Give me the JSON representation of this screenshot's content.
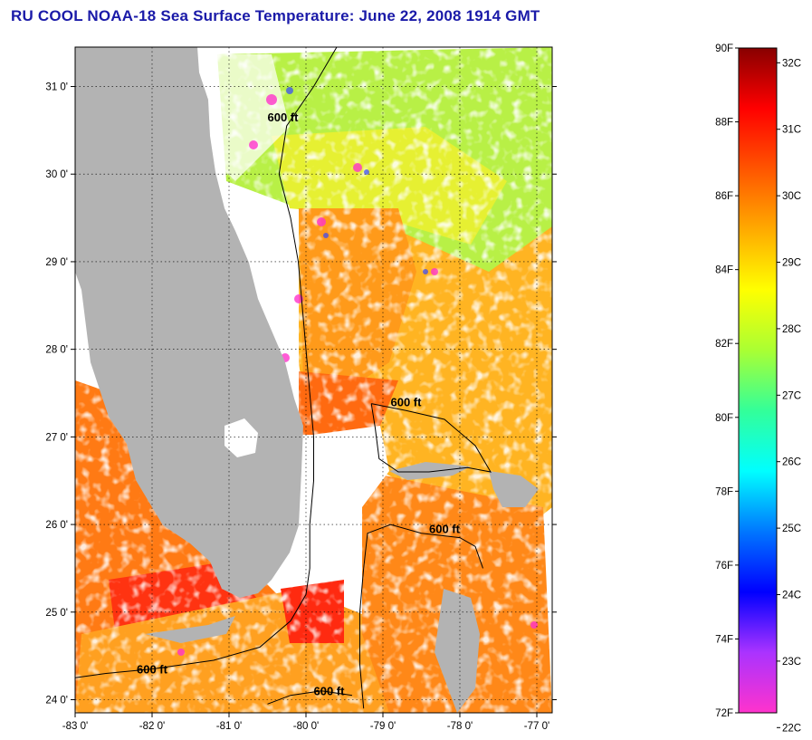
{
  "title": "RU COOL  NOAA-18  Sea Surface Temperature:  June 22, 2008 1914 GMT",
  "chart_data": {
    "type": "heatmap",
    "title": "RU COOL  NOAA-18  Sea Surface Temperature:  June 22, 2008 1914 GMT",
    "x_axis": {
      "range": [
        -83.0,
        -76.8
      ],
      "tick_values": [
        -83,
        -82,
        -81,
        -80,
        -79,
        -78,
        -77
      ],
      "tick_labels": [
        "-83 0'",
        "-82 0'",
        "-81 0'",
        "-80 0'",
        "-79 0'",
        "-78 0'",
        "-77 0'"
      ]
    },
    "y_axis": {
      "range": [
        23.85,
        31.45
      ],
      "tick_values": [
        24,
        25,
        26,
        27,
        28,
        29,
        30,
        31
      ],
      "tick_labels": [
        "24 0'",
        "25 0'",
        "26 0'",
        "27 0'",
        "28 0'",
        "29 0'",
        "30 0'",
        "31 0'"
      ]
    },
    "grid": true,
    "land_color": "#b3b3b3",
    "contour_labels": [
      {
        "text": "600 ft",
        "lon": -80.5,
        "lat": 30.6
      },
      {
        "text": "600 ft",
        "lon": -78.9,
        "lat": 27.35
      },
      {
        "text": "600 ft",
        "lon": -78.4,
        "lat": 25.9
      },
      {
        "text": "600 ft",
        "lon": -82.2,
        "lat": 24.3
      },
      {
        "text": "600 ft",
        "lon": -79.9,
        "lat": 24.05
      }
    ],
    "colorbar": {
      "min_f": 72,
      "max_f": 90,
      "fahrenheit_labels": [
        "90F",
        "88F",
        "86F",
        "84F",
        "82F",
        "80F",
        "78F",
        "76F",
        "74F",
        "72F"
      ],
      "fahrenheit_values": [
        90,
        88,
        86,
        84,
        82,
        80,
        78,
        76,
        74,
        72
      ],
      "celsius_labels": [
        "32C",
        "31C",
        "30C",
        "29C",
        "28C",
        "27C",
        "26C",
        "25C",
        "24C",
        "23C",
        "22C"
      ],
      "celsius_values": [
        32,
        31,
        30,
        29,
        28,
        27,
        26,
        25,
        24,
        23,
        22
      ],
      "stops": [
        "#ff33cc",
        "#aa33ff",
        "#0000ff",
        "#0077ff",
        "#00ffff",
        "#33ff99",
        "#aaff33",
        "#ffff00",
        "#ffaa00",
        "#ff5500",
        "#ff0000",
        "#880000"
      ]
    }
  }
}
